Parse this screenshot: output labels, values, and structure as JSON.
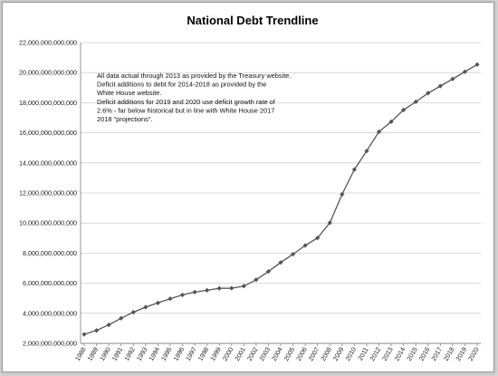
{
  "chart_data": {
    "type": "line",
    "title": "National Debt Trendline",
    "xlabel": "",
    "ylabel": "",
    "ylim": [
      2000000000000,
      22000000000000
    ],
    "ytick_step": 2000000000000,
    "ytick_labels": [
      "2,000,000,000,000",
      "4,000,000,000,000",
      "6,000,000,000,000",
      "8,000,000,000,000",
      "10,000,000,000,000",
      "12,000,000,000,000",
      "14,000,000,000,000",
      "16,000,000,000,000",
      "18,000,000,000,000",
      "20,000,000,000,000",
      "22,000,000,000,000"
    ],
    "grid": true,
    "legend": "none",
    "line_color": "#555555",
    "grid_color": "#cfcfcf",
    "x": [
      "1988",
      "1989",
      "1990",
      "1991",
      "1992",
      "1993",
      "1994",
      "1995",
      "1996",
      "1997",
      "1998",
      "1999",
      "2000",
      "2001",
      "2002",
      "2003",
      "2004",
      "2005",
      "2006",
      "2007",
      "2008",
      "2009",
      "2010",
      "2011",
      "2012",
      "2013",
      "2014",
      "2015",
      "2016",
      "2017",
      "2018",
      "2019",
      "2020"
    ],
    "series": [
      {
        "values": [
          2600000000000,
          2860000000000,
          3230000000000,
          3670000000000,
          4070000000000,
          4410000000000,
          4690000000000,
          4970000000000,
          5220000000000,
          5410000000000,
          5530000000000,
          5660000000000,
          5670000000000,
          5810000000000,
          6230000000000,
          6780000000000,
          7380000000000,
          7930000000000,
          8510000000000,
          9010000000000,
          10020000000000,
          11910000000000,
          13560000000000,
          14790000000000,
          16070000000000,
          16740000000000,
          17520000000000,
          18060000000000,
          18640000000000,
          19110000000000,
          19580000000000,
          20060000000000,
          20540000000000
        ]
      }
    ],
    "annotation_lines": [
      "All data actual through  2013 as provided  by the Treasury website.",
      "Deficit additions to debt for 2014-2018 as provided  by the",
      "White House website.",
      "Deficit additions for 2019 and 2020 use deficit growth rate of",
      "2.6%  - far below historical but in line with White House 2017",
      "2018 \"projections\"."
    ]
  }
}
